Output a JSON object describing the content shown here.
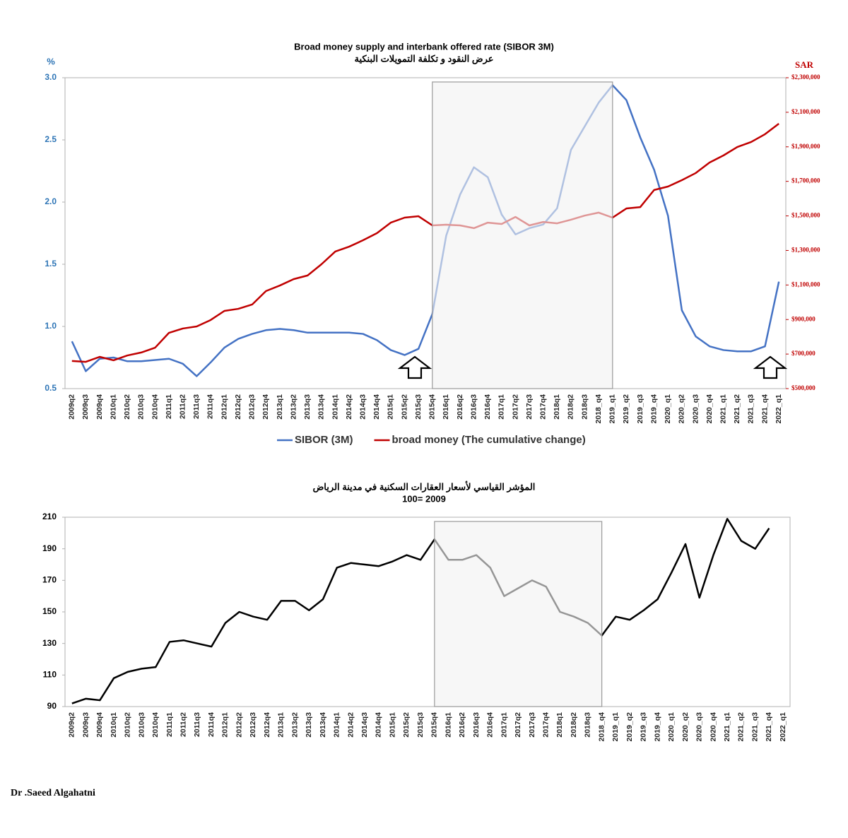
{
  "chart_data": [
    {
      "type": "line",
      "title": "Broad money supply and interbank offered rate (SIBOR  3M)",
      "subtitle": "عرض النقود و تكلفة التمويلات البنكية",
      "ylabel": "%",
      "y2label": "SAR",
      "categories": [
        "2009q2",
        "2009q3",
        "2009q4",
        "2010q1",
        "2010q2",
        "2010q3",
        "2010q4",
        "2011q1",
        "2011q2",
        "2011q3",
        "2011q4",
        "2012q1",
        "2012q2",
        "2012q3",
        "2012q4",
        "2013q1",
        "2013q2",
        "2013q3",
        "2013q4",
        "2014q1",
        "2014q2",
        "2014q3",
        "2014q4",
        "2015q1",
        "2015q2",
        "2015q3",
        "2015q4",
        "2016q1",
        "2016q2",
        "2016q3",
        "2016q4",
        "2017q1",
        "2017q2",
        "2017q3",
        "2017q4",
        "2018q1",
        "2018q2",
        "2018q3",
        "2018_q4",
        "2019_q1",
        "2019_q2",
        "2019_q3",
        "2019_q4",
        "2020_q1",
        "2020_q2",
        "2020_q3",
        "2020_q4",
        "2021_q1",
        "2021_q2",
        "2021_q3",
        "2021_q4",
        "2022_q1"
      ],
      "series": [
        {
          "name": "SIBOR (3M)",
          "color": "#4472c4",
          "axis": "y",
          "values": [
            0.88,
            0.64,
            0.74,
            0.75,
            0.72,
            0.72,
            0.73,
            0.74,
            0.7,
            0.6,
            0.71,
            0.83,
            0.9,
            0.94,
            0.97,
            0.98,
            0.97,
            0.95,
            0.95,
            0.95,
            0.95,
            0.94,
            0.89,
            0.81,
            0.77,
            0.82,
            1.1,
            1.73,
            2.06,
            2.28,
            2.2,
            1.9,
            1.74,
            1.79,
            1.82,
            1.95,
            2.42,
            2.61,
            2.8,
            2.94,
            2.82,
            2.52,
            2.26,
            1.89,
            1.13,
            0.92,
            0.84,
            0.81,
            0.8,
            0.8,
            0.84,
            1.36
          ]
        },
        {
          "name": "broad money (The cumulative change)",
          "color": "#c00000",
          "axis": "y2",
          "values": [
            660000,
            655000,
            684000,
            664000,
            692000,
            709000,
            737000,
            823000,
            848000,
            860000,
            897000,
            950000,
            962000,
            987000,
            1065000,
            1097000,
            1134000,
            1155000,
            1220000,
            1294000,
            1322000,
            1359000,
            1400000,
            1461000,
            1490000,
            1498000,
            1445000,
            1449000,
            1445000,
            1429000,
            1461000,
            1453000,
            1494000,
            1445000,
            1465000,
            1457000,
            1478000,
            1502000,
            1519000,
            1490000,
            1543000,
            1551000,
            1650000,
            1670000,
            1707000,
            1748000,
            1809000,
            1850000,
            1899000,
            1928000,
            1973000,
            2034000
          ]
        }
      ],
      "ylim": [
        0.5,
        3.0
      ],
      "yticks": [
        0.5,
        {
          "value": 1.0,
          "label": "1.0"
        },
        1.5,
        {
          "value": 2.0,
          "label": "2.0"
        },
        2.5,
        {
          "value": 3.0,
          "label": "3.0"
        }
      ],
      "y2lim": [
        500000,
        2300000
      ],
      "y2ticks": [
        {
          "value": 500000,
          "label": "$500,000"
        },
        {
          "value": 700000,
          "label": "$700,000"
        },
        {
          "value": 900000,
          "label": "$900,000"
        },
        {
          "value": 1100000,
          "label": "$1,100,000"
        },
        {
          "value": 1300000,
          "label": "$1,300,000"
        },
        {
          "value": 1500000,
          "label": "$1,500,000"
        },
        {
          "value": 1700000,
          "label": "$1,700,000"
        },
        {
          "value": 1900000,
          "label": "$1,900,000"
        },
        {
          "value": 2100000,
          "label": "$2,100,000"
        },
        {
          "value": 2300000,
          "label": "$2,300,000"
        }
      ],
      "shaded": {
        "from": "2015q4",
        "to": "2019_q1"
      },
      "legend": "bottom",
      "grid": false
    },
    {
      "type": "line",
      "title": "المؤشر القياسي لأسعار العقارات السكنية في مدينة الرياض",
      "subtitle": "100= 2009",
      "categories": [
        "2009q2",
        "2009q3",
        "2009q4",
        "2010q1",
        "2010q2",
        "2010q3",
        "2010q4",
        "2011q1",
        "2011q2",
        "2011q3",
        "2011q4",
        "2012q1",
        "2012q2",
        "2012q3",
        "2012q4",
        "2013q1",
        "2013q2",
        "2013q3",
        "2013q4",
        "2014q1",
        "2014q2",
        "2014q3",
        "2014q4",
        "2015q1",
        "2015q2",
        "2015q3",
        "2015q4",
        "2016q1",
        "2016q2",
        "2016q3",
        "2016q4",
        "2017q1",
        "2017q2",
        "2017q3",
        "2017q4",
        "2018q1",
        "2018q2",
        "2018q3",
        "2018_q4",
        "2019_q1",
        "2019_q2",
        "2019_q3",
        "2019_q4",
        "2020_q1",
        "2020_q2",
        "2020_q3",
        "2020_q4",
        "2021_q1",
        "2021_q2",
        "2021_q3",
        "2021_q4",
        "2022_q1"
      ],
      "series": [
        {
          "color": "#000000",
          "axis": "y",
          "values": [
            92,
            95,
            94,
            108,
            112,
            114,
            115,
            131,
            132,
            130,
            128,
            143,
            150,
            147,
            145,
            157,
            157,
            151,
            158,
            178,
            181,
            180,
            179,
            182,
            186,
            183,
            196,
            183,
            183,
            186,
            178,
            160,
            165,
            170,
            166,
            150,
            147,
            143,
            135,
            147,
            145,
            151,
            158,
            175,
            193,
            159,
            186,
            209,
            195,
            190,
            203,
            null
          ]
        }
      ],
      "ylim": [
        90,
        210
      ],
      "yticks": [
        90,
        110,
        130,
        150,
        170,
        190,
        210
      ],
      "shaded": {
        "from": "2015q4",
        "to": "2018_q4"
      },
      "grid": false
    }
  ],
  "footer": "Dr .Saeed Algahatni"
}
